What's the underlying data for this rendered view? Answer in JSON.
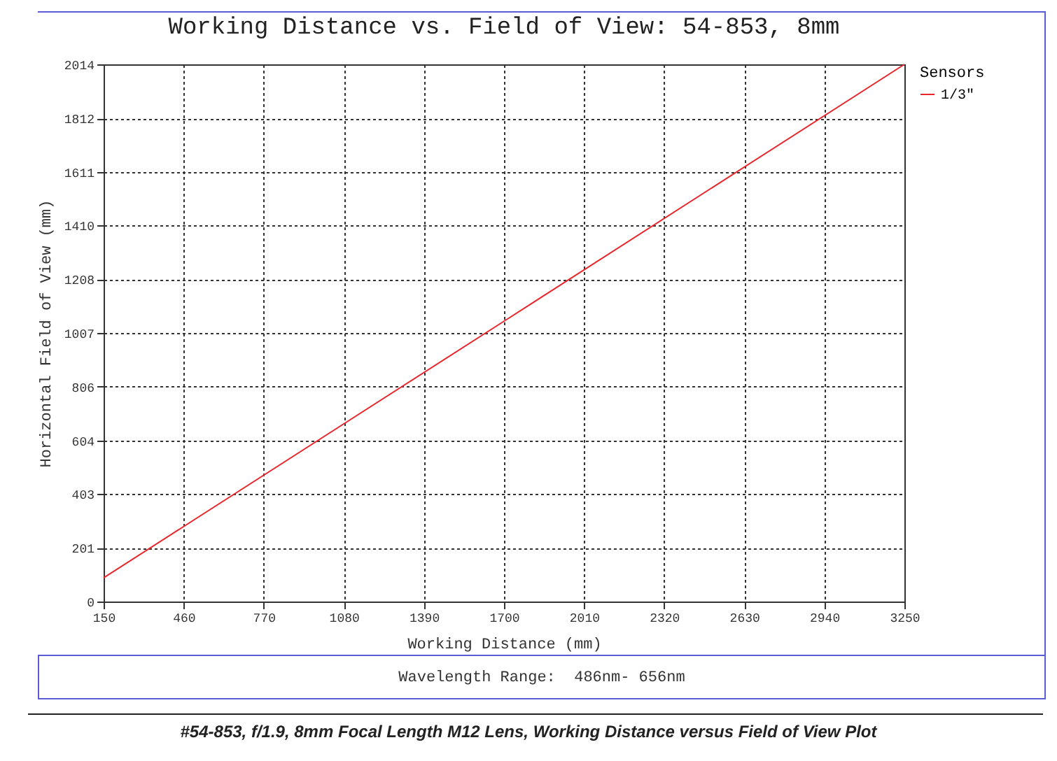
{
  "chart_data": {
    "type": "line",
    "title": "Working Distance vs. Field of View: 54-853, 8mm",
    "xlabel": "Working Distance (mm)",
    "ylabel": "Horizontal Field of View (mm)",
    "legend_title": "Sensors",
    "legend": "right",
    "series": [
      {
        "name": "1/3\"",
        "color": "#e8262b",
        "x": [
          150,
          1700,
          3250
        ],
        "values": [
          89,
          1051,
          2014
        ]
      }
    ],
    "xlim": [
      150,
      3250
    ],
    "xticks": [
      150,
      460,
      770,
      1080,
      1390,
      1700,
      2010,
      2320,
      2630,
      2940,
      3250
    ],
    "ylim": [
      0,
      2014
    ],
    "yticks": [
      0,
      201,
      403,
      604,
      806,
      1007,
      1208,
      1410,
      1611,
      1812,
      2014
    ],
    "grid": true,
    "annotations": [
      "Wavelength Range:  486nm- 656nm",
      "#54-853, f/1.9, 8mm Focal Length M12 Lens, Working Distance versus Field of View Plot"
    ]
  }
}
